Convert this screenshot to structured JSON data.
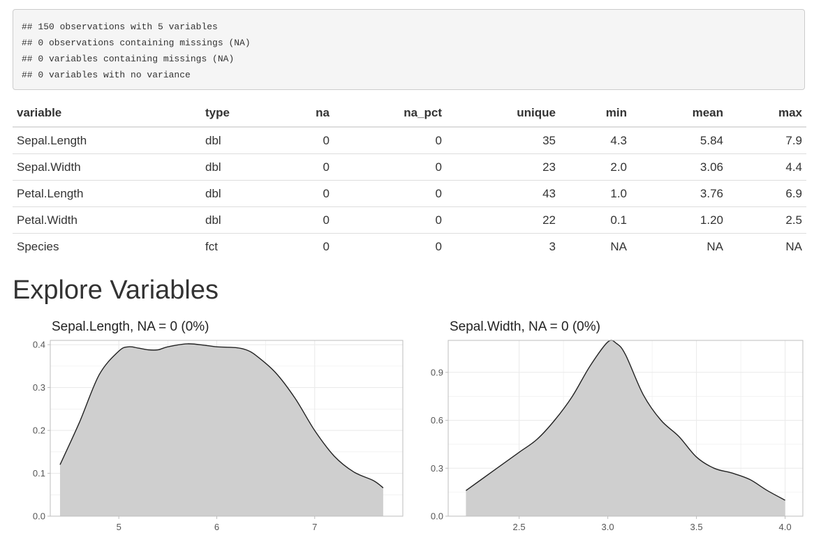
{
  "console": {
    "lines": [
      "## 150 observations with 5 variables",
      "## 0 observations containing missings (NA)",
      "## 0 variables containing missings (NA)",
      "## 0 variables with no variance"
    ]
  },
  "table": {
    "headers": [
      "variable",
      "type",
      "na",
      "na_pct",
      "unique",
      "min",
      "mean",
      "max"
    ],
    "rows": [
      [
        "Sepal.Length",
        "dbl",
        "0",
        "0",
        "35",
        "4.3",
        "5.84",
        "7.9"
      ],
      [
        "Sepal.Width",
        "dbl",
        "0",
        "0",
        "23",
        "2.0",
        "3.06",
        "4.4"
      ],
      [
        "Petal.Length",
        "dbl",
        "0",
        "0",
        "43",
        "1.0",
        "3.76",
        "6.9"
      ],
      [
        "Petal.Width",
        "dbl",
        "0",
        "0",
        "22",
        "0.1",
        "1.20",
        "2.5"
      ],
      [
        "Species",
        "fct",
        "0",
        "0",
        "3",
        "NA",
        "NA",
        "NA"
      ]
    ]
  },
  "section": {
    "title": "Explore Variables"
  },
  "colors": {
    "fill": "#cfcfcf",
    "line": "#222222",
    "grid": "#ebebeb",
    "panel_border": "#bdbdbd",
    "axis_text": "#555555"
  },
  "chart_data": [
    {
      "type": "area",
      "title": "Sepal.Length, NA = 0 (0%)",
      "xlabel": "",
      "ylabel": "",
      "xlim": [
        4.3,
        7.9
      ],
      "ylim": [
        0,
        0.41
      ],
      "xticks": [
        "5",
        "6",
        "7"
      ],
      "yticks": [
        "0.0",
        "0.1",
        "0.2",
        "0.3",
        "0.4"
      ],
      "grid": true,
      "x": [
        4.4,
        4.6,
        4.8,
        5.0,
        5.1,
        5.2,
        5.3,
        5.4,
        5.5,
        5.7,
        5.9,
        6.0,
        6.2,
        6.3,
        6.4,
        6.6,
        6.8,
        7.0,
        7.2,
        7.4,
        7.6,
        7.7
      ],
      "y": [
        0.12,
        0.22,
        0.33,
        0.385,
        0.395,
        0.392,
        0.388,
        0.388,
        0.395,
        0.402,
        0.398,
        0.395,
        0.393,
        0.388,
        0.375,
        0.335,
        0.275,
        0.2,
        0.14,
        0.103,
        0.083,
        0.066
      ]
    },
    {
      "type": "area",
      "title": "Sepal.Width, NA = 0 (0%)",
      "xlabel": "",
      "ylabel": "",
      "xlim": [
        2.1,
        4.1
      ],
      "ylim": [
        0,
        1.1
      ],
      "xticks": [
        "2.5",
        "3.0",
        "3.5",
        "4.0"
      ],
      "yticks": [
        "0.0",
        "0.3",
        "0.6",
        "0.9"
      ],
      "grid": true,
      "x": [
        2.2,
        2.3,
        2.4,
        2.5,
        2.6,
        2.7,
        2.8,
        2.9,
        3.0,
        3.05,
        3.1,
        3.2,
        3.3,
        3.4,
        3.5,
        3.6,
        3.7,
        3.8,
        3.9,
        4.0
      ],
      "y": [
        0.16,
        0.24,
        0.32,
        0.4,
        0.48,
        0.6,
        0.75,
        0.94,
        1.09,
        1.08,
        1.01,
        0.76,
        0.6,
        0.5,
        0.37,
        0.3,
        0.27,
        0.23,
        0.16,
        0.1
      ]
    }
  ]
}
